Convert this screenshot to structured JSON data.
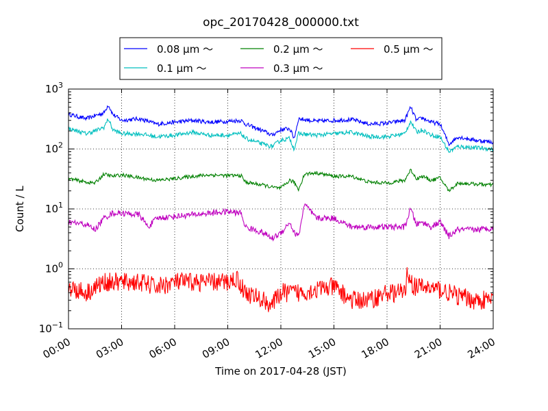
{
  "chart_data": {
    "type": "line",
    "title": "opc_20170428_000000.txt",
    "xlabel": "Time on 2017-04-28 (JST)",
    "ylabel": "Count / L",
    "y_scale": "log",
    "xlim": [
      "00:00",
      "24:00"
    ],
    "ylim": [
      0.1,
      1000
    ],
    "grid": true,
    "legend_position": "top-center",
    "x_ticks": [
      "00:00",
      "03:00",
      "06:00",
      "09:00",
      "12:00",
      "15:00",
      "18:00",
      "21:00",
      "24:00"
    ],
    "y_ticks": [
      {
        "value": 0.1,
        "base": "10",
        "exp": "−1"
      },
      {
        "value": 1,
        "base": "10",
        "exp": "0"
      },
      {
        "value": 10,
        "base": "10",
        "exp": "1"
      },
      {
        "value": 100,
        "base": "10",
        "exp": "2"
      },
      {
        "value": 1000,
        "base": "10",
        "exp": "3"
      }
    ],
    "series": [
      {
        "name": "0.08 μm ～",
        "color": "#0000ff",
        "x": [
          "00:00",
          "01:00",
          "01:30",
          "02:00",
          "02:15",
          "02:30",
          "03:00",
          "04:00",
          "05:00",
          "06:00",
          "07:00",
          "08:00",
          "09:00",
          "09:45",
          "10:00",
          "11:00",
          "11:30",
          "12:00",
          "12:30",
          "12:45",
          "13:00",
          "14:00",
          "15:00",
          "16:00",
          "17:00",
          "18:00",
          "19:00",
          "19:20",
          "19:40",
          "20:00",
          "20:30",
          "21:00",
          "21:30",
          "22:00",
          "23:00",
          "24:00"
        ],
        "values": [
          380,
          320,
          360,
          400,
          550,
          380,
          300,
          320,
          260,
          280,
          300,
          280,
          290,
          300,
          260,
          200,
          170,
          210,
          220,
          150,
          320,
          290,
          300,
          310,
          260,
          270,
          300,
          500,
          300,
          330,
          280,
          260,
          120,
          160,
          140,
          130
        ]
      },
      {
        "name": "0.1 μm ～",
        "color": "#00bfbf",
        "x": [
          "00:00",
          "01:00",
          "01:30",
          "02:00",
          "02:15",
          "02:30",
          "03:00",
          "04:00",
          "05:00",
          "06:00",
          "07:00",
          "08:00",
          "09:00",
          "09:45",
          "10:00",
          "11:00",
          "11:30",
          "12:00",
          "12:30",
          "12:45",
          "13:00",
          "14:00",
          "15:00",
          "16:00",
          "17:00",
          "18:00",
          "19:00",
          "19:20",
          "19:40",
          "20:00",
          "20:30",
          "21:00",
          "21:30",
          "22:00",
          "23:00",
          "24:00"
        ],
        "values": [
          220,
          180,
          200,
          230,
          320,
          210,
          180,
          180,
          160,
          170,
          190,
          170,
          170,
          180,
          150,
          120,
          110,
          140,
          150,
          100,
          180,
          170,
          180,
          190,
          160,
          160,
          180,
          290,
          190,
          210,
          170,
          160,
          90,
          110,
          105,
          100
        ]
      },
      {
        "name": "0.2 μm ～",
        "color": "#008000",
        "x": [
          "00:00",
          "01:00",
          "01:30",
          "02:00",
          "02:30",
          "03:00",
          "04:00",
          "05:00",
          "06:00",
          "07:00",
          "08:00",
          "09:00",
          "09:45",
          "10:00",
          "11:00",
          "11:30",
          "12:00",
          "12:30",
          "12:45",
          "13:00",
          "13:20",
          "14:00",
          "15:00",
          "16:00",
          "17:00",
          "18:00",
          "19:00",
          "19:20",
          "19:40",
          "20:00",
          "20:30",
          "21:00",
          "21:30",
          "22:00",
          "23:00",
          "24:00"
        ],
        "values": [
          32,
          28,
          27,
          38,
          35,
          37,
          33,
          30,
          32,
          35,
          37,
          36,
          36,
          28,
          25,
          23,
          22,
          30,
          28,
          21,
          38,
          40,
          35,
          35,
          28,
          27,
          30,
          45,
          32,
          35,
          30,
          33,
          20,
          27,
          26,
          25
        ]
      },
      {
        "name": "0.3 μm ～",
        "color": "#bf00bf",
        "x": [
          "00:00",
          "01:00",
          "01:30",
          "02:00",
          "02:30",
          "03:00",
          "04:00",
          "04:30",
          "05:00",
          "06:00",
          "07:00",
          "08:00",
          "09:00",
          "09:45",
          "10:00",
          "11:00",
          "11:30",
          "12:00",
          "12:30",
          "12:45",
          "13:00",
          "13:20",
          "14:00",
          "15:00",
          "16:00",
          "17:00",
          "18:00",
          "19:00",
          "19:20",
          "19:40",
          "20:00",
          "20:30",
          "21:00",
          "21:30",
          "22:00",
          "23:00",
          "24:00"
        ],
        "values": [
          6,
          5.5,
          4.5,
          7,
          8.5,
          8.5,
          8,
          5,
          7,
          7.5,
          8,
          8.5,
          9,
          8.5,
          5,
          4,
          3.2,
          4,
          6,
          4,
          3.5,
          12,
          7,
          7,
          5,
          5,
          5,
          5,
          10,
          5.5,
          6,
          5,
          6,
          3.5,
          4.5,
          4.5,
          4.8
        ]
      },
      {
        "name": "0.5 μm ～",
        "color": "#ff0000",
        "x": [
          "00:00",
          "01:00",
          "02:00",
          "03:00",
          "04:00",
          "05:00",
          "06:00",
          "07:00",
          "08:00",
          "09:00",
          "09:30",
          "10:00",
          "11:00",
          "11:30",
          "12:00",
          "13:00",
          "14:00",
          "15:00",
          "16:00",
          "17:00",
          "18:00",
          "19:00",
          "19:10",
          "19:30",
          "20:00",
          "21:00",
          "22:00",
          "23:00",
          "24:00"
        ],
        "values": [
          0.5,
          0.4,
          0.6,
          0.6,
          0.6,
          0.5,
          0.6,
          0.6,
          0.6,
          0.6,
          0.7,
          0.4,
          0.3,
          0.25,
          0.4,
          0.4,
          0.45,
          0.5,
          0.3,
          0.3,
          0.4,
          0.4,
          0.9,
          0.5,
          0.5,
          0.45,
          0.35,
          0.3,
          0.3
        ]
      }
    ]
  }
}
